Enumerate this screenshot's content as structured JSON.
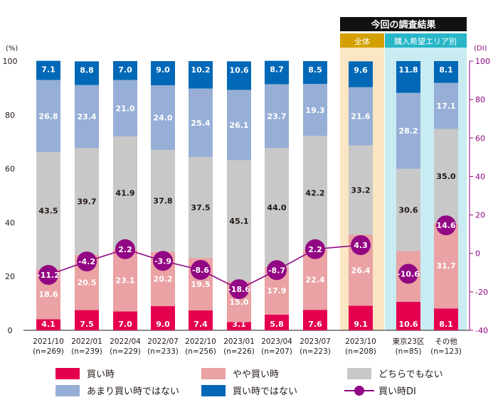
{
  "chart_data": {
    "type": "bar",
    "subtype": "stacked-100 with line overlay",
    "header": {
      "title": "今回の調査結果",
      "group_all": "全体",
      "group_area": "購入希望エリア別"
    },
    "left_axis": {
      "unit": "(%)",
      "ylim": [
        0,
        100
      ],
      "ticks": [
        0,
        20,
        40,
        60,
        80,
        100
      ]
    },
    "right_axis": {
      "unit": "(DI)",
      "ylim": [
        -40,
        100
      ],
      "ticks": [
        -40,
        -20,
        0,
        20,
        40,
        60,
        80,
        100
      ]
    },
    "categories": [
      {
        "label": "2021/10",
        "n": "(n=269)"
      },
      {
        "label": "2022/01",
        "n": "(n=239)"
      },
      {
        "label": "2022/04",
        "n": "(n=229)"
      },
      {
        "label": "2022/07",
        "n": "(n=233)"
      },
      {
        "label": "2022/10",
        "n": "(n=256)"
      },
      {
        "label": "2023/01",
        "n": "(n=226)"
      },
      {
        "label": "2023/04",
        "n": "(n=207)"
      },
      {
        "label": "2023/07",
        "n": "(n=223)"
      },
      {
        "label": "2023/10",
        "n": "(n=208)"
      },
      {
        "label": "東京23区",
        "n": "(n=85)"
      },
      {
        "label": "その他",
        "n": "(n=123)"
      }
    ],
    "series": [
      {
        "name": "買い時",
        "color": "#e5004f",
        "label_color": "#ffffff",
        "values": [
          4.1,
          7.5,
          7.0,
          9.0,
          7.4,
          3.1,
          5.8,
          7.6,
          9.1,
          10.6,
          8.1
        ]
      },
      {
        "name": "やや買い時",
        "color": "#eaa2a4",
        "label_color": "#ffffff",
        "values": [
          18.6,
          20.5,
          23.1,
          20.2,
          19.5,
          15.0,
          17.9,
          22.4,
          26.4,
          18.8,
          31.7
        ]
      },
      {
        "name": "どちらでもない",
        "color": "#c8c8c8",
        "label_color": "#231815",
        "values": [
          43.5,
          39.7,
          41.9,
          37.8,
          37.5,
          45.1,
          44.0,
          42.2,
          33.2,
          30.6,
          35.0
        ]
      },
      {
        "name": "あまり買い時ではない",
        "color": "#97afd6",
        "label_color": "#ffffff",
        "values": [
          26.8,
          23.4,
          21.0,
          24.0,
          25.4,
          26.1,
          23.7,
          19.3,
          21.6,
          28.2,
          17.1
        ]
      },
      {
        "name": "買い時ではない",
        "color": "#0068b7",
        "label_color": "#ffffff",
        "values": [
          7.1,
          8.8,
          7.0,
          9.0,
          10.2,
          10.6,
          8.7,
          8.5,
          9.6,
          11.8,
          8.1
        ]
      }
    ],
    "di_series": {
      "name": "買い時DI",
      "color": "#920783",
      "values": [
        -11.2,
        -4.2,
        2.2,
        -3.9,
        -8.6,
        -18.6,
        -8.7,
        2.2,
        4.3,
        -10.6,
        14.6
      ],
      "line_connects_first": 9
    },
    "legend": [
      {
        "name": "買い時",
        "type": "box",
        "color": "#e5004f"
      },
      {
        "name": "やや買い時",
        "type": "box",
        "color": "#eaa2a4"
      },
      {
        "name": "どちらでもない",
        "type": "box",
        "color": "#c8c8c8"
      },
      {
        "name": "あまり買い時ではない",
        "type": "box",
        "color": "#97afd6"
      },
      {
        "name": "買い時ではない",
        "type": "box",
        "color": "#0068b7"
      },
      {
        "name": "買い時DI",
        "type": "line",
        "color": "#920783"
      }
    ],
    "colors": {
      "header_bg": "#111111",
      "all_bg": "#fae6c2",
      "all_tab": "#d3a000",
      "area_bg": "#c9ecf2",
      "area_tab": "#28b7c8",
      "axis_right": "#920783"
    }
  }
}
